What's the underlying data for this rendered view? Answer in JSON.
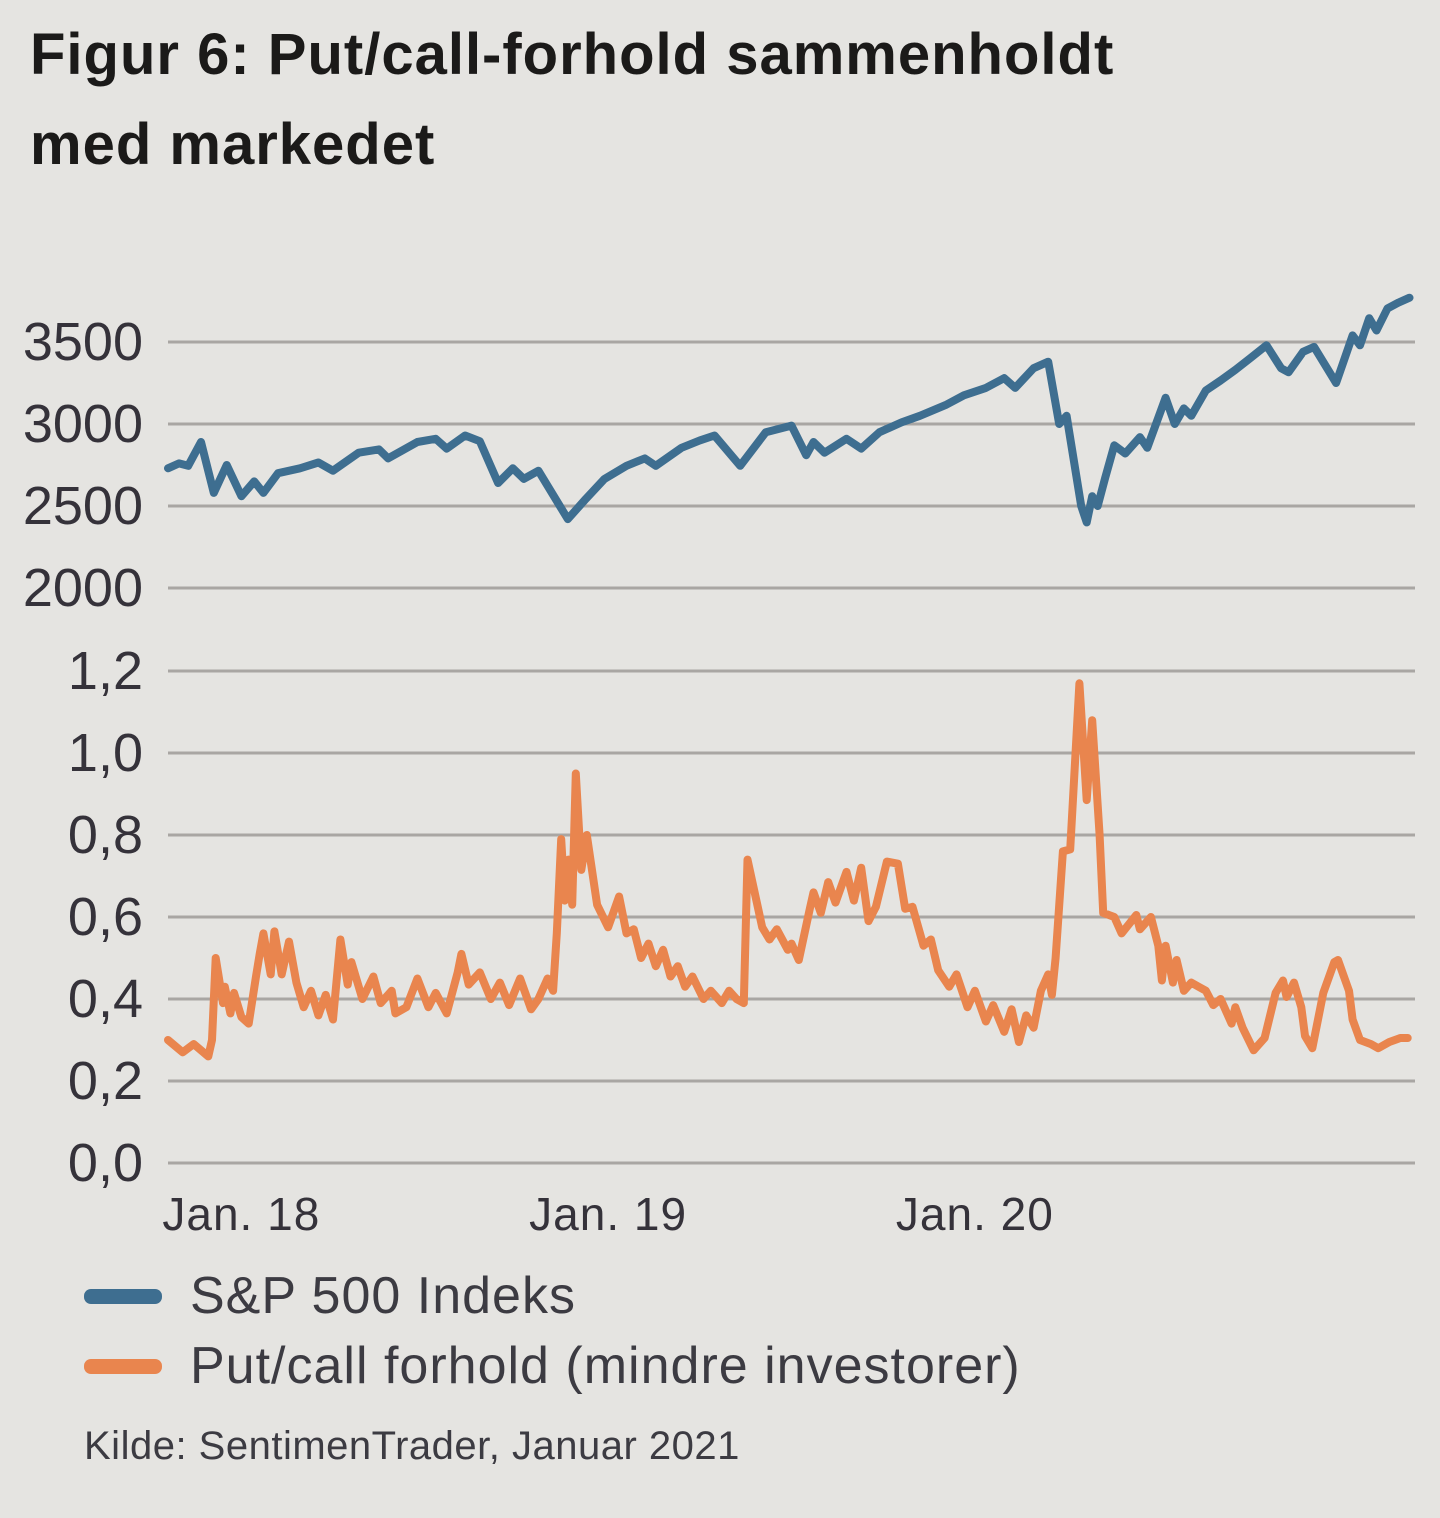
{
  "title": {
    "line1": "Figur 6: Put/call-forhold sammenholdt",
    "line2": "med markedet"
  },
  "legend": [
    {
      "label": "S&P 500 Indeks",
      "color": "#3e6e90"
    },
    {
      "label": "Put/call forhold (mindre investorer)",
      "color": "#e9854e"
    }
  ],
  "source": "Kilde: SentimenTrader, Januar 2021",
  "colors": {
    "background": "#e5e4e1",
    "gridline": "#a9a6a3",
    "sp500_line": "#3e6e90",
    "putcall_line": "#e9854e",
    "title_text": "#1b1a19",
    "axis_text": "#35323a",
    "legend_text": "#3c3b42"
  },
  "chart_data": {
    "type": "line",
    "title": "Figur 6: Put/call-forhold sammenholdt med markedet",
    "grid": true,
    "legend_position": "bottom-left",
    "x_axis": {
      "min": 2017.8,
      "max": 2021.2,
      "ticks": [
        {
          "value": 2018,
          "label": "Jan. 18"
        },
        {
          "value": 2019,
          "label": "Jan. 19"
        },
        {
          "value": 2020,
          "label": "Jan. 20"
        }
      ]
    },
    "panels": [
      {
        "id": "sp500",
        "ylim": [
          2000,
          3500
        ],
        "ticks": [
          {
            "value": 3500,
            "label": "3500"
          },
          {
            "value": 3000,
            "label": "3000"
          },
          {
            "value": 2500,
            "label": "2500"
          },
          {
            "value": 2000,
            "label": "2000"
          }
        ]
      },
      {
        "id": "putcall",
        "ylim": [
          0.0,
          1.2
        ],
        "ticks": [
          {
            "value": 1.2,
            "label": "1,2"
          },
          {
            "value": 1.0,
            "label": "1,0"
          },
          {
            "value": 0.8,
            "label": "0,8"
          },
          {
            "value": 0.6,
            "label": "0,6"
          },
          {
            "value": 0.4,
            "label": "0,4"
          },
          {
            "value": 0.2,
            "label": "0,2"
          },
          {
            "value": 0.0,
            "label": "0,0"
          }
        ]
      }
    ],
    "series": [
      {
        "name": "S&P 500 Indeks",
        "panel": "sp500",
        "color": "#3e6e90",
        "points": [
          [
            2017.8,
            2730
          ],
          [
            2017.83,
            2760
          ],
          [
            2017.855,
            2745
          ],
          [
            2017.89,
            2890
          ],
          [
            2017.925,
            2580
          ],
          [
            2017.96,
            2750
          ],
          [
            2018.0,
            2560
          ],
          [
            2018.035,
            2650
          ],
          [
            2018.06,
            2580
          ],
          [
            2018.1,
            2700
          ],
          [
            2018.16,
            2730
          ],
          [
            2018.21,
            2765
          ],
          [
            2018.25,
            2715
          ],
          [
            2018.32,
            2825
          ],
          [
            2018.375,
            2845
          ],
          [
            2018.4,
            2790
          ],
          [
            2018.48,
            2890
          ],
          [
            2018.53,
            2910
          ],
          [
            2018.56,
            2850
          ],
          [
            2018.61,
            2930
          ],
          [
            2018.65,
            2895
          ],
          [
            2018.7,
            2640
          ],
          [
            2018.74,
            2730
          ],
          [
            2018.77,
            2665
          ],
          [
            2018.81,
            2715
          ],
          [
            2018.89,
            2420
          ],
          [
            2018.94,
            2545
          ],
          [
            2018.99,
            2665
          ],
          [
            2019.05,
            2745
          ],
          [
            2019.1,
            2790
          ],
          [
            2019.13,
            2745
          ],
          [
            2019.2,
            2855
          ],
          [
            2019.25,
            2900
          ],
          [
            2019.29,
            2930
          ],
          [
            2019.36,
            2745
          ],
          [
            2019.43,
            2950
          ],
          [
            2019.5,
            2990
          ],
          [
            2019.54,
            2810
          ],
          [
            2019.56,
            2890
          ],
          [
            2019.59,
            2825
          ],
          [
            2019.65,
            2910
          ],
          [
            2019.69,
            2850
          ],
          [
            2019.74,
            2950
          ],
          [
            2019.8,
            3010
          ],
          [
            2019.85,
            3050
          ],
          [
            2019.92,
            3115
          ],
          [
            2019.97,
            3175
          ],
          [
            2020.03,
            3220
          ],
          [
            2020.08,
            3280
          ],
          [
            2020.11,
            3220
          ],
          [
            2020.16,
            3340
          ],
          [
            2020.2,
            3380
          ],
          [
            2020.23,
            3000
          ],
          [
            2020.25,
            3050
          ],
          [
            2020.29,
            2500
          ],
          [
            2020.305,
            2400
          ],
          [
            2020.32,
            2560
          ],
          [
            2020.335,
            2500
          ],
          [
            2020.355,
            2670
          ],
          [
            2020.38,
            2870
          ],
          [
            2020.41,
            2820
          ],
          [
            2020.45,
            2920
          ],
          [
            2020.47,
            2855
          ],
          [
            2020.52,
            3160
          ],
          [
            2020.545,
            3000
          ],
          [
            2020.57,
            3095
          ],
          [
            2020.59,
            3050
          ],
          [
            2020.63,
            3205
          ],
          [
            2020.67,
            3265
          ],
          [
            2020.71,
            3330
          ],
          [
            2020.75,
            3400
          ],
          [
            2020.795,
            3480
          ],
          [
            2020.835,
            3340
          ],
          [
            2020.855,
            3315
          ],
          [
            2020.895,
            3440
          ],
          [
            2020.925,
            3470
          ],
          [
            2020.985,
            3250
          ],
          [
            2021.03,
            3540
          ],
          [
            2021.05,
            3480
          ],
          [
            2021.075,
            3645
          ],
          [
            2021.095,
            3570
          ],
          [
            2021.125,
            3705
          ],
          [
            2021.155,
            3740
          ],
          [
            2021.185,
            3770
          ]
        ]
      },
      {
        "name": "Put/call forhold (mindre investorer)",
        "panel": "putcall",
        "color": "#e9854e",
        "points": [
          [
            2017.8,
            0.3
          ],
          [
            2017.84,
            0.27
          ],
          [
            2017.87,
            0.29
          ],
          [
            2017.91,
            0.26
          ],
          [
            2017.92,
            0.3
          ],
          [
            2017.93,
            0.5
          ],
          [
            2017.95,
            0.39
          ],
          [
            2017.955,
            0.43
          ],
          [
            2017.97,
            0.365
          ],
          [
            2017.98,
            0.415
          ],
          [
            2018.0,
            0.356
          ],
          [
            2018.02,
            0.34
          ],
          [
            2018.04,
            0.455
          ],
          [
            2018.05,
            0.51
          ],
          [
            2018.06,
            0.56
          ],
          [
            2018.08,
            0.46
          ],
          [
            2018.09,
            0.565
          ],
          [
            2018.11,
            0.46
          ],
          [
            2018.13,
            0.54
          ],
          [
            2018.15,
            0.44
          ],
          [
            2018.17,
            0.38
          ],
          [
            2018.19,
            0.42
          ],
          [
            2018.21,
            0.36
          ],
          [
            2018.23,
            0.41
          ],
          [
            2018.25,
            0.35
          ],
          [
            2018.27,
            0.545
          ],
          [
            2018.29,
            0.435
          ],
          [
            2018.3,
            0.49
          ],
          [
            2018.33,
            0.4
          ],
          [
            2018.36,
            0.455
          ],
          [
            2018.38,
            0.39
          ],
          [
            2018.41,
            0.42
          ],
          [
            2018.42,
            0.365
          ],
          [
            2018.45,
            0.38
          ],
          [
            2018.48,
            0.45
          ],
          [
            2018.51,
            0.38
          ],
          [
            2018.53,
            0.415
          ],
          [
            2018.56,
            0.365
          ],
          [
            2018.59,
            0.465
          ],
          [
            2018.6,
            0.51
          ],
          [
            2018.62,
            0.435
          ],
          [
            2018.65,
            0.465
          ],
          [
            2018.68,
            0.4
          ],
          [
            2018.705,
            0.44
          ],
          [
            2018.73,
            0.385
          ],
          [
            2018.76,
            0.45
          ],
          [
            2018.79,
            0.375
          ],
          [
            2018.81,
            0.4
          ],
          [
            2018.835,
            0.45
          ],
          [
            2018.85,
            0.42
          ],
          [
            2018.86,
            0.56
          ],
          [
            2018.872,
            0.79
          ],
          [
            2018.882,
            0.64
          ],
          [
            2018.892,
            0.74
          ],
          [
            2018.902,
            0.63
          ],
          [
            2018.912,
            0.95
          ],
          [
            2018.927,
            0.715
          ],
          [
            2018.942,
            0.8
          ],
          [
            2018.97,
            0.63
          ],
          [
            2019.0,
            0.575
          ],
          [
            2019.03,
            0.65
          ],
          [
            2019.05,
            0.56
          ],
          [
            2019.07,
            0.57
          ],
          [
            2019.09,
            0.5
          ],
          [
            2019.11,
            0.535
          ],
          [
            2019.13,
            0.48
          ],
          [
            2019.15,
            0.52
          ],
          [
            2019.17,
            0.455
          ],
          [
            2019.19,
            0.48
          ],
          [
            2019.21,
            0.43
          ],
          [
            2019.23,
            0.455
          ],
          [
            2019.26,
            0.4
          ],
          [
            2019.28,
            0.42
          ],
          [
            2019.31,
            0.39
          ],
          [
            2019.33,
            0.42
          ],
          [
            2019.35,
            0.4
          ],
          [
            2019.37,
            0.39
          ],
          [
            2019.38,
            0.74
          ],
          [
            2019.42,
            0.575
          ],
          [
            2019.44,
            0.545
          ],
          [
            2019.46,
            0.57
          ],
          [
            2019.49,
            0.52
          ],
          [
            2019.5,
            0.535
          ],
          [
            2019.52,
            0.495
          ],
          [
            2019.55,
            0.62
          ],
          [
            2019.56,
            0.66
          ],
          [
            2019.58,
            0.61
          ],
          [
            2019.6,
            0.685
          ],
          [
            2019.62,
            0.635
          ],
          [
            2019.65,
            0.71
          ],
          [
            2019.67,
            0.64
          ],
          [
            2019.69,
            0.72
          ],
          [
            2019.71,
            0.59
          ],
          [
            2019.73,
            0.625
          ],
          [
            2019.76,
            0.735
          ],
          [
            2019.79,
            0.73
          ],
          [
            2019.81,
            0.62
          ],
          [
            2019.83,
            0.625
          ],
          [
            2019.86,
            0.53
          ],
          [
            2019.88,
            0.545
          ],
          [
            2019.9,
            0.47
          ],
          [
            2019.93,
            0.43
          ],
          [
            2019.95,
            0.46
          ],
          [
            2019.98,
            0.38
          ],
          [
            2020.0,
            0.42
          ],
          [
            2020.03,
            0.345
          ],
          [
            2020.05,
            0.385
          ],
          [
            2020.08,
            0.32
          ],
          [
            2020.1,
            0.375
          ],
          [
            2020.12,
            0.295
          ],
          [
            2020.14,
            0.36
          ],
          [
            2020.16,
            0.33
          ],
          [
            2020.18,
            0.42
          ],
          [
            2020.2,
            0.46
          ],
          [
            2020.21,
            0.41
          ],
          [
            2020.22,
            0.5
          ],
          [
            2020.24,
            0.76
          ],
          [
            2020.26,
            0.765
          ],
          [
            2020.285,
            1.17
          ],
          [
            2020.305,
            0.885
          ],
          [
            2020.32,
            1.08
          ],
          [
            2020.34,
            0.8
          ],
          [
            2020.35,
            0.61
          ],
          [
            2020.38,
            0.6
          ],
          [
            2020.4,
            0.56
          ],
          [
            2020.44,
            0.605
          ],
          [
            2020.45,
            0.57
          ],
          [
            2020.48,
            0.6
          ],
          [
            2020.5,
            0.53
          ],
          [
            2020.51,
            0.445
          ],
          [
            2020.52,
            0.53
          ],
          [
            2020.54,
            0.44
          ],
          [
            2020.55,
            0.495
          ],
          [
            2020.57,
            0.42
          ],
          [
            2020.59,
            0.44
          ],
          [
            2020.61,
            0.43
          ],
          [
            2020.63,
            0.42
          ],
          [
            2020.65,
            0.385
          ],
          [
            2020.67,
            0.4
          ],
          [
            2020.7,
            0.34
          ],
          [
            2020.71,
            0.38
          ],
          [
            2020.73,
            0.33
          ],
          [
            2020.76,
            0.275
          ],
          [
            2020.79,
            0.305
          ],
          [
            2020.82,
            0.415
          ],
          [
            2020.84,
            0.445
          ],
          [
            2020.85,
            0.405
          ],
          [
            2020.87,
            0.44
          ],
          [
            2020.89,
            0.38
          ],
          [
            2020.9,
            0.31
          ],
          [
            2020.92,
            0.28
          ],
          [
            2020.95,
            0.415
          ],
          [
            2020.98,
            0.49
          ],
          [
            2020.99,
            0.495
          ],
          [
            2021.02,
            0.42
          ],
          [
            2021.03,
            0.35
          ],
          [
            2021.05,
            0.3
          ],
          [
            2021.08,
            0.29
          ],
          [
            2021.1,
            0.28
          ],
          [
            2021.13,
            0.295
          ],
          [
            2021.16,
            0.305
          ],
          [
            2021.18,
            0.305
          ]
        ]
      }
    ]
  }
}
